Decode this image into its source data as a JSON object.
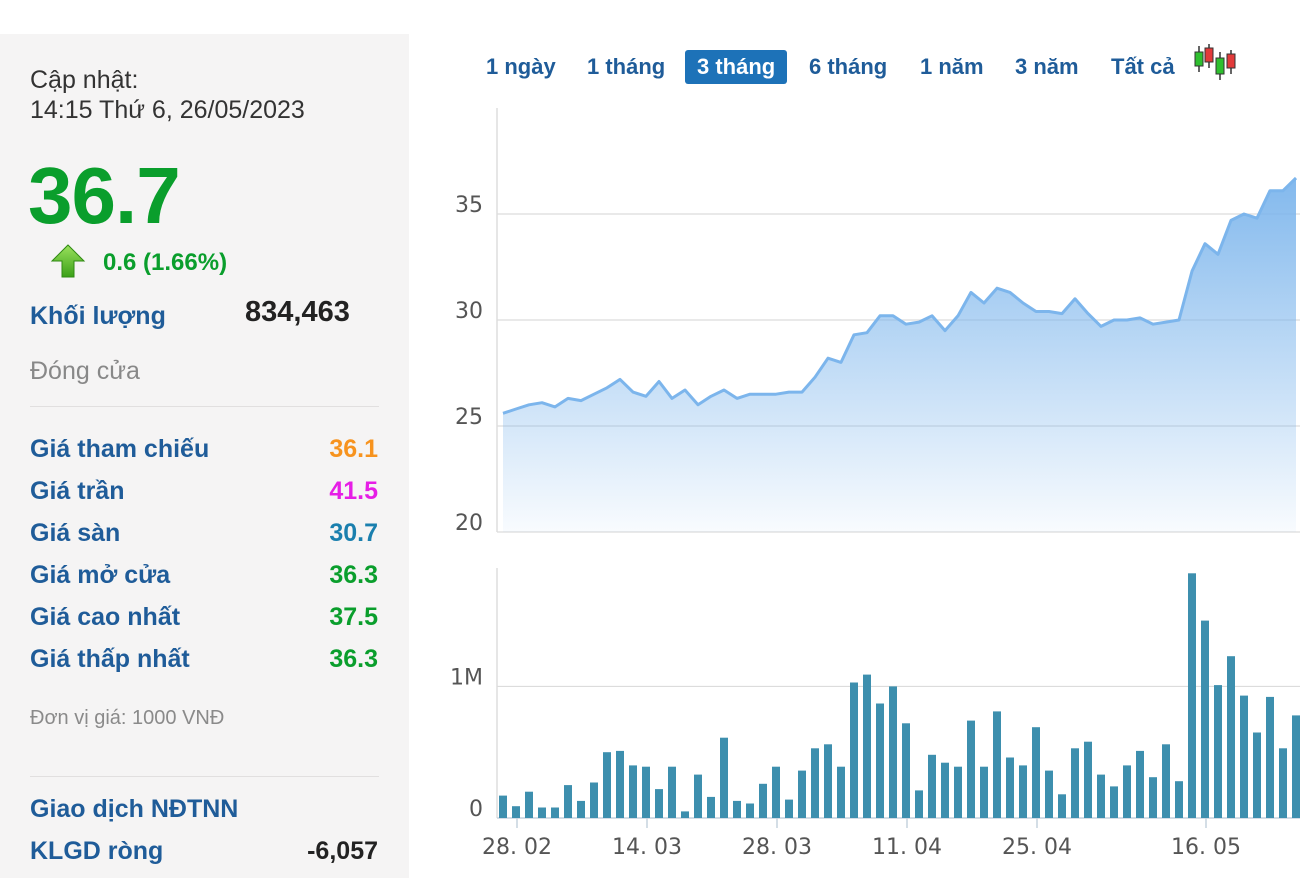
{
  "info": {
    "update_label": "Cập nhật:",
    "update_time": "14:15 Thứ 6, 26/05/2023",
    "price": "36.7",
    "change": "0.6 (1.66%)",
    "volume_label": "Khối lượng",
    "volume_value": "834,463",
    "close_label": "Đóng cửa",
    "rows": [
      {
        "label": "Giá tham chiếu",
        "value": "36.1",
        "color": "#f7931e"
      },
      {
        "label": "Giá trần",
        "value": "41.5",
        "color": "#e61ee6"
      },
      {
        "label": "Giá sàn",
        "value": "30.7",
        "color": "#1a7fae"
      },
      {
        "label": "Giá mở cửa",
        "value": "36.3",
        "color": "#0a9e2c"
      },
      {
        "label": "Giá cao nhất",
        "value": "37.5",
        "color": "#0a9e2c"
      },
      {
        "label": "Giá thấp nhất",
        "value": "36.3",
        "color": "#0a9e2c"
      }
    ],
    "unit": "Đơn vị giá: 1000 VNĐ",
    "foreign_title": "Giao dịch NĐTNN",
    "net_label": "KLGD ròng",
    "net_value": "-6,057"
  },
  "tabs": [
    {
      "label": "1 ngày",
      "active": false
    },
    {
      "label": "1 tháng",
      "active": false
    },
    {
      "label": "3 tháng",
      "active": true
    },
    {
      "label": "6 tháng",
      "active": false
    },
    {
      "label": "1 năm",
      "active": false
    },
    {
      "label": "3 năm",
      "active": false
    },
    {
      "label": "Tất cả",
      "active": false
    }
  ],
  "candlestick_icon": "candlestick-icon",
  "chart_data": [
    {
      "type": "area",
      "color": "#7cb5ec",
      "ylim": [
        20,
        40
      ],
      "yticks": [
        "20",
        "25",
        "30",
        "35"
      ],
      "xticks": [
        "28. 02",
        "14. 03",
        "28. 03",
        "11. 04",
        "25. 04",
        "16. 05"
      ],
      "xlabel": "",
      "ylabel": "",
      "values": [
        25.6,
        25.8,
        26.0,
        26.1,
        25.9,
        26.3,
        26.2,
        26.5,
        26.8,
        27.2,
        26.6,
        26.4,
        27.1,
        26.3,
        26.7,
        26.0,
        26.4,
        26.7,
        26.3,
        26.5,
        26.5,
        26.5,
        26.6,
        26.6,
        27.3,
        28.2,
        28.0,
        29.3,
        29.4,
        30.2,
        30.2,
        29.8,
        29.9,
        30.2,
        29.5,
        30.2,
        31.3,
        30.8,
        31.5,
        31.3,
        30.8,
        30.4,
        30.4,
        30.3,
        31.0,
        30.3,
        29.7,
        30.0,
        30.0,
        30.1,
        29.8,
        29.9,
        30.0,
        32.3,
        33.6,
        33.1,
        34.7,
        35.0,
        34.8,
        36.1,
        36.1,
        36.7
      ]
    },
    {
      "type": "bar",
      "color": "#3d8fae",
      "ylim": [
        0,
        1900000
      ],
      "yticks": [
        "0",
        "1M"
      ],
      "xlabel": "",
      "ylabel": "",
      "values": [
        170000,
        90000,
        200000,
        80000,
        80000,
        250000,
        130000,
        270000,
        500000,
        510000,
        400000,
        390000,
        220000,
        390000,
        50000,
        330000,
        160000,
        610000,
        130000,
        110000,
        260000,
        390000,
        140000,
        360000,
        530000,
        560000,
        390000,
        1030000,
        1090000,
        870000,
        1000000,
        720000,
        210000,
        480000,
        420000,
        390000,
        740000,
        390000,
        810000,
        460000,
        400000,
        690000,
        360000,
        180000,
        530000,
        580000,
        330000,
        240000,
        400000,
        510000,
        310000,
        560000,
        280000,
        1860000,
        1500000,
        1010000,
        1230000,
        930000,
        650000,
        920000,
        530000,
        780000
      ]
    }
  ]
}
